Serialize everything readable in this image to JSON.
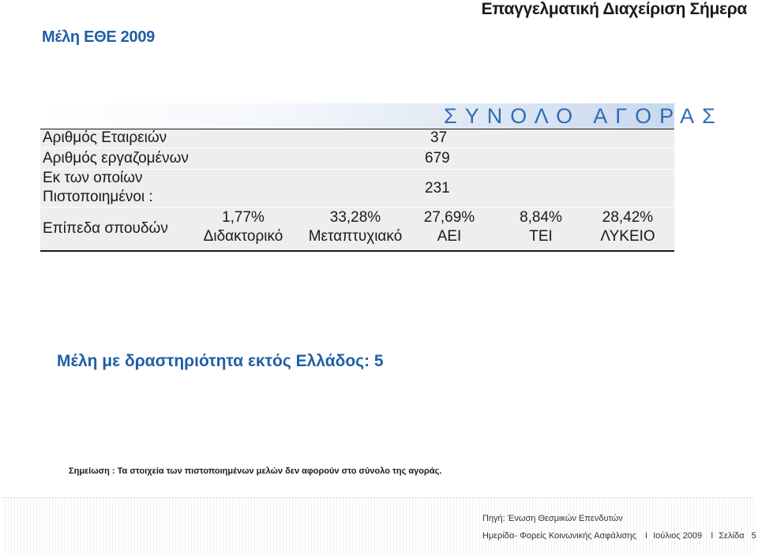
{
  "header": {
    "top_title": "Επαγγελματική Διαχείριση Σήμερα",
    "section_title": "Μέλη ΕΘΕ 2009"
  },
  "table": {
    "column_header": "ΣΥΝΟΛΟ ΑΓΟΡΑΣ",
    "rows": [
      {
        "label": "Αριθμός Εταιρειών",
        "value": "37"
      },
      {
        "label": "Αριθμός εργαζομένων",
        "value": "679"
      },
      {
        "label_line1": "Εκ των οποίων",
        "label_line2": "Πιστοποιημένοι :",
        "value": "231"
      }
    ],
    "education": {
      "label": "Επίπεδα σπουδών",
      "levels": [
        {
          "pct": "1,77%",
          "name": "Διδακτορικό"
        },
        {
          "pct": "33,28%",
          "name": "Μεταπτυχιακό"
        },
        {
          "pct": "27,69%",
          "name": "ΑΕΙ"
        },
        {
          "pct": "8,84%",
          "name": "ΤΕΙ"
        },
        {
          "pct": "28,42%",
          "name": "ΛΥΚΕΙΟ"
        }
      ]
    }
  },
  "members_abroad": "Μέλη με δραστηριότητα εκτός Ελλάδος: 5",
  "note": "Σημείωση : Τα στοιχεία των πιστοποιημένων μελών δεν αφορούν στο σύνολο της αγοράς.",
  "footer": {
    "source": "Πηγή: Ένωση Θεσμικών Επενδυτών",
    "event": "Ημερίδα- Φορείς Κοινωνικής Ασφάλισης",
    "separator": "I",
    "date": "Ιούλιος 2009",
    "page": "Σελίδα   5"
  }
}
